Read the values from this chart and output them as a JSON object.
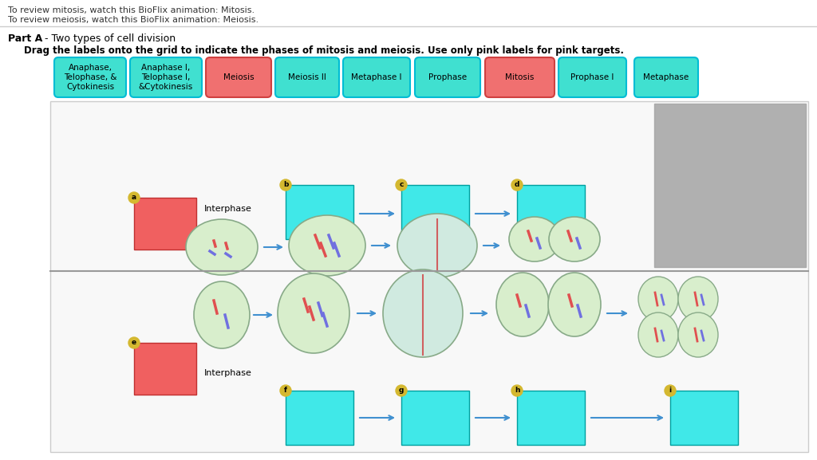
{
  "background_color": "#ffffff",
  "page_bg": "#ffffff",
  "title_text": "Part A - Two types of cell division",
  "subtitle_text": "Drag the labels onto the grid to indicate the phases of mitosis and meiosis. Use only pink labels for pink targets.",
  "top_links": [
    "To review mitosis, watch this BioFlix animation: Mitosis.",
    "To review meiosis, watch this BioFlix animation: Meiosis."
  ],
  "labels": [
    {
      "text": "Anaphase,\nTelophase, &\nCytokinesis",
      "color": "#40e0d0",
      "border": "#00bcd4"
    },
    {
      "text": "Anaphase I,\nTelophase I,\n&Cytokinesis",
      "color": "#40e0d0",
      "border": "#00bcd4"
    },
    {
      "text": "Meiosis",
      "color": "#f07070",
      "border": "#d04040"
    },
    {
      "text": "Meiosis II",
      "color": "#40e0d0",
      "border": "#00bcd4"
    },
    {
      "text": "Metaphase I",
      "color": "#40e0d0",
      "border": "#00bcd4"
    },
    {
      "text": "Prophase",
      "color": "#40e0d0",
      "border": "#00bcd4"
    },
    {
      "text": "Mitosis",
      "color": "#f07070",
      "border": "#d04040"
    },
    {
      "text": "Prophase I",
      "color": "#40e0d0",
      "border": "#00bcd4"
    },
    {
      "text": "Metaphase",
      "color": "#40e0d0",
      "border": "#00bcd4"
    }
  ],
  "diagram_bg": "#f0f0f0",
  "diagram_border": "#cccccc",
  "cyan_box_color": "#40e8e8",
  "red_box_color": "#f06060",
  "gray_box_color": "#b0b0b0",
  "cell_color": "#c8e8c8",
  "cell_border": "#88b888",
  "arrow_color": "#4090d0",
  "interphase_label": "Interphase",
  "circle_label_color": "#c8a820",
  "top_section": {
    "label_a": "a",
    "label_b": "b",
    "label_c": "c",
    "label_d": "d",
    "interphase": "Interphase"
  },
  "bottom_section": {
    "label_e": "e",
    "label_f": "f",
    "label_g": "g",
    "label_h": "h",
    "label_i": "i",
    "interphase": "Interphase"
  }
}
